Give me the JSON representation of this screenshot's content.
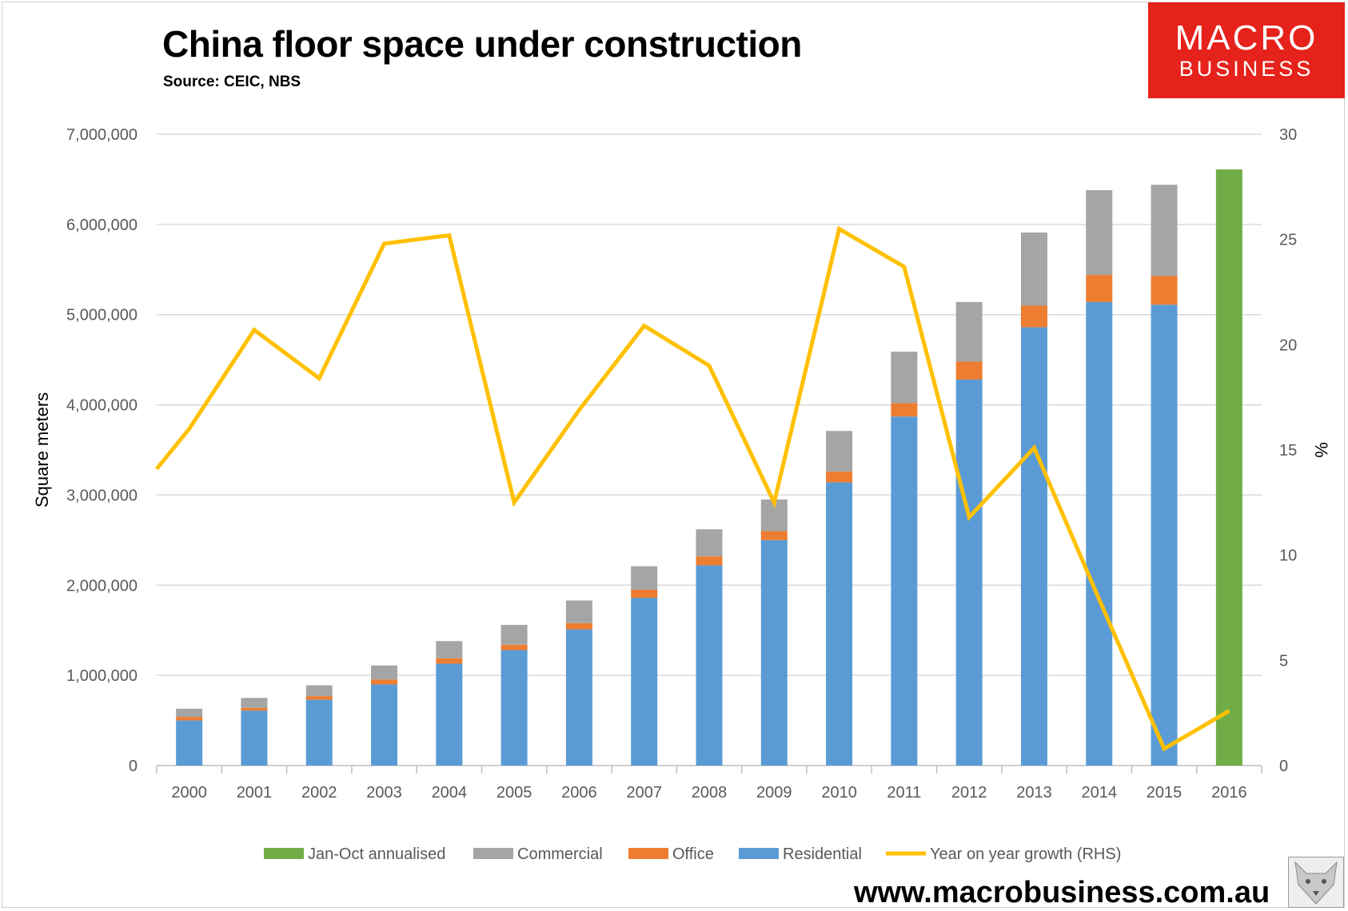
{
  "title": "China floor space under construction",
  "source": "Source: CEIC, NBS",
  "logo": {
    "line1": "MACRO",
    "line2": "BUSINESS"
  },
  "url": "www.macrobusiness.com.au",
  "colors": {
    "residential": "#5b9bd5",
    "office": "#ed7d31",
    "commercial": "#a5a5a5",
    "annualised": "#70ad47",
    "growth": "#ffc000",
    "logo_bg": "#e5221b"
  },
  "chart_data": {
    "type": "bar",
    "stacked": true,
    "title": "China floor space under construction",
    "ylabel": "Square meters",
    "y2label": "%",
    "ylim": [
      0,
      7000000
    ],
    "y2lim": [
      0,
      30
    ],
    "yticks": [
      "0",
      "1,000,000",
      "2,000,000",
      "3,000,000",
      "4,000,000",
      "5,000,000",
      "6,000,000",
      "7,000,000"
    ],
    "y2ticks": [
      "0",
      "5",
      "10",
      "15",
      "20",
      "25",
      "30"
    ],
    "categories": [
      "2000",
      "2001",
      "2002",
      "2003",
      "2004",
      "2005",
      "2006",
      "2007",
      "2008",
      "2009",
      "2010",
      "2011",
      "2012",
      "2013",
      "2014",
      "2015",
      "2016"
    ],
    "series": [
      {
        "name": "Residential",
        "values": [
          500000,
          610000,
          730000,
          900000,
          1130000,
          1280000,
          1510000,
          1860000,
          2220000,
          2500000,
          3140000,
          3870000,
          4280000,
          4860000,
          5140000,
          5110000,
          null
        ]
      },
      {
        "name": "Office",
        "values": [
          40000,
          30000,
          40000,
          55000,
          60000,
          60000,
          70000,
          90000,
          100000,
          100000,
          120000,
          150000,
          200000,
          240000,
          300000,
          320000,
          null
        ]
      },
      {
        "name": "Commercial",
        "values": [
          90000,
          110000,
          120000,
          155000,
          190000,
          220000,
          250000,
          260000,
          300000,
          350000,
          450000,
          570000,
          660000,
          810000,
          940000,
          1010000,
          null
        ]
      },
      {
        "name": "Jan-Oct annualised",
        "values": [
          null,
          null,
          null,
          null,
          null,
          null,
          null,
          null,
          null,
          null,
          null,
          null,
          null,
          null,
          null,
          null,
          6610000
        ]
      }
    ],
    "line_series": {
      "name": "Year on year growth (RHS)",
      "start_value": 14.1,
      "values": [
        16.0,
        20.7,
        18.4,
        24.8,
        25.2,
        12.5,
        16.9,
        20.9,
        19.0,
        12.5,
        25.5,
        23.7,
        11.8,
        15.1,
        7.9,
        0.8,
        2.6
      ]
    },
    "legend": [
      "Jan-Oct annualised",
      "Commercial",
      "Office",
      "Residential",
      "Year on year growth (RHS)"
    ],
    "legend_position": "bottom"
  }
}
